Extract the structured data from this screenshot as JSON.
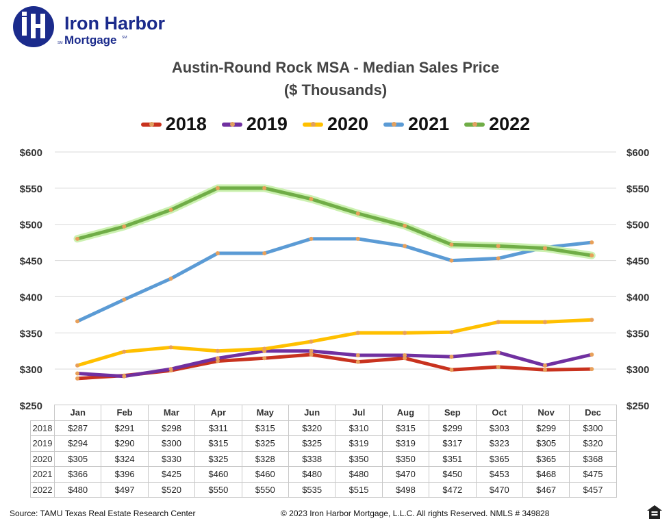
{
  "logo": {
    "brand_text": "Iron Harbor",
    "sub_text": "Mortgage",
    "mark_sm": "SM",
    "mark_sm2": "SM",
    "color": "#1b2b8c"
  },
  "footer": {
    "source": "Source: TAMU Texas Real Estate Research Center",
    "copyright": "© 2023  Iron Harbor Mortgage, L.L.C.  All rights Reserved. NMLS  # 349828"
  },
  "chart_data": {
    "type": "line",
    "title": "Austin-Round Rock MSA - Median Sales Price",
    "subtitle": "($ Thousands)",
    "categories": [
      "Jan",
      "Feb",
      "Mar",
      "Apr",
      "May",
      "Jun",
      "Jul",
      "Aug",
      "Sep",
      "Oct",
      "Nov",
      "Dec"
    ],
    "ylim": [
      250,
      600
    ],
    "yticks": [
      "$600",
      "$550",
      "$500",
      "$450",
      "$400",
      "$350",
      "$300",
      "$250"
    ],
    "legend_position": "top-center",
    "data_table": true,
    "series": [
      {
        "name": "2018",
        "color": "#c8321e",
        "values": [
          287,
          291,
          298,
          311,
          315,
          320,
          310,
          315,
          299,
          303,
          299,
          300
        ],
        "table": [
          "$287",
          "$291",
          "$298",
          "$311",
          "$315",
          "$320",
          "$310",
          "$315",
          "$299",
          "$303",
          "$299",
          "$300"
        ]
      },
      {
        "name": "2019",
        "color": "#7030a0",
        "values": [
          294,
          290,
          300,
          315,
          325,
          325,
          319,
          319,
          317,
          323,
          305,
          320
        ],
        "table": [
          "$294",
          "$290",
          "$300",
          "$315",
          "$325",
          "$325",
          "$319",
          "$319",
          "$317",
          "$323",
          "$305",
          "$320"
        ]
      },
      {
        "name": "2020",
        "color": "#ffc000",
        "values": [
          305,
          324,
          330,
          325,
          328,
          338,
          350,
          350,
          351,
          365,
          365,
          368
        ],
        "table": [
          "$305",
          "$324",
          "$330",
          "$325",
          "$328",
          "$338",
          "$350",
          "$350",
          "$351",
          "$365",
          "$365",
          "$368"
        ]
      },
      {
        "name": "2021",
        "color": "#5b9bd5",
        "values": [
          366,
          396,
          425,
          460,
          460,
          480,
          480,
          470,
          450,
          453,
          468,
          475
        ],
        "table": [
          "$366",
          "$396",
          "$425",
          "$460",
          "$460",
          "$480",
          "$480",
          "$470",
          "$450",
          "$453",
          "$468",
          "$475"
        ]
      },
      {
        "name": "2022",
        "color": "#70ad47",
        "values": [
          480,
          497,
          520,
          550,
          550,
          535,
          515,
          498,
          472,
          470,
          467,
          457
        ],
        "table": [
          "$480",
          "$497",
          "$520",
          "$550",
          "$550",
          "$535",
          "$515",
          "$498",
          "$472",
          "$470",
          "$467",
          "$457"
        ]
      }
    ]
  }
}
